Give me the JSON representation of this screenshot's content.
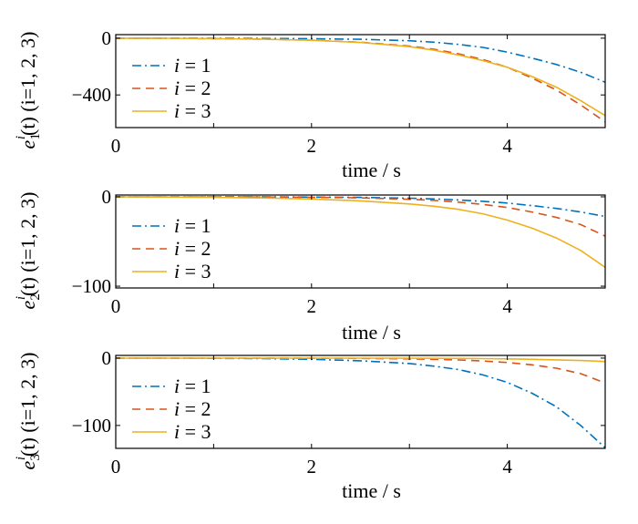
{
  "chart_data": [
    {
      "type": "line",
      "xlabel": "time / s",
      "ylabel": "e_1^i(t) (i=1, 2, 3)",
      "ylabel_parts": {
        "base": "e",
        "sub": "1",
        "sup": "i",
        "rest": "(t)  (i=1, 2, 3)"
      },
      "xlim": [
        0,
        5
      ],
      "ylim": [
        -630,
        25
      ],
      "x_ticks": [
        0,
        2,
        4
      ],
      "x_tick_labels": [
        "0",
        "2",
        "4"
      ],
      "y_ticks": [
        0,
        -400
      ],
      "y_tick_labels": [
        "0",
        "-400"
      ],
      "x": [
        0,
        0.5,
        1,
        1.5,
        2,
        2.5,
        3,
        3.25,
        3.5,
        3.75,
        4,
        4.25,
        4.5,
        4.75,
        5
      ],
      "series": [
        {
          "name": "i = 1",
          "color": "#0072BD",
          "dash": "dashdot",
          "values": [
            0,
            0,
            -1,
            -2,
            -4,
            -8,
            -18,
            -28,
            -44,
            -65,
            -98,
            -140,
            -185,
            -240,
            -310
          ]
        },
        {
          "name": "i = 2",
          "color": "#D95319",
          "dash": "dashed",
          "values": [
            0,
            -1,
            -3,
            -7,
            -14,
            -28,
            -55,
            -78,
            -110,
            -150,
            -205,
            -280,
            -365,
            -470,
            -590
          ]
        },
        {
          "name": "i = 3",
          "color": "#EDB120",
          "dash": "solid",
          "values": [
            0,
            -1,
            -3,
            -7,
            -15,
            -30,
            -60,
            -85,
            -118,
            -158,
            -205,
            -270,
            -345,
            -440,
            -545
          ]
        }
      ],
      "legend_position": "left"
    },
    {
      "type": "line",
      "xlabel": "time / s",
      "ylabel": "e_2^i(t) (i=1, 2, 3)",
      "ylabel_parts": {
        "base": "e",
        "sub": "2",
        "sup": "i",
        "rest": "(t)  (i=1, 2, 3)"
      },
      "xlim": [
        0,
        5
      ],
      "ylim": [
        -102,
        2
      ],
      "x_ticks": [
        0,
        2,
        4
      ],
      "x_tick_labels": [
        "0",
        "2",
        "4"
      ],
      "y_ticks": [
        0,
        -100
      ],
      "y_tick_labels": [
        "0",
        "-100"
      ],
      "x": [
        0,
        0.5,
        1,
        1.5,
        2,
        2.5,
        3,
        3.25,
        3.5,
        3.75,
        4,
        4.25,
        4.5,
        4.75,
        5
      ],
      "series": [
        {
          "name": "i = 1",
          "color": "#0072BD",
          "dash": "dashdot",
          "values": [
            0,
            0,
            0,
            0,
            -0.3,
            -0.7,
            -1.6,
            -2.4,
            -3.5,
            -5,
            -7,
            -9.8,
            -13,
            -17,
            -22
          ]
        },
        {
          "name": "i = 2",
          "color": "#D95319",
          "dash": "dashed",
          "values": [
            0,
            0,
            0,
            -0.2,
            -0.5,
            -1.2,
            -2.8,
            -4,
            -6,
            -8.5,
            -12,
            -17,
            -23,
            -31,
            -44
          ]
        },
        {
          "name": "i = 3",
          "color": "#EDB120",
          "dash": "solid",
          "values": [
            0,
            -0.2,
            -0.6,
            -1.3,
            -2.5,
            -4.5,
            -8,
            -10.5,
            -14,
            -19,
            -26,
            -35,
            -46,
            -60,
            -79
          ]
        }
      ],
      "legend_position": "left"
    },
    {
      "type": "line",
      "xlabel": "time / s",
      "ylabel": "e_3^i(t) (i=1, 2, 3)",
      "ylabel_parts": {
        "base": "e",
        "sub": "3",
        "sup": "i",
        "rest": "(t)  (i=1, 2, 3)"
      },
      "xlim": [
        0,
        5
      ],
      "ylim": [
        -134,
        4
      ],
      "x_ticks": [
        0,
        2,
        4
      ],
      "x_tick_labels": [
        "0",
        "2",
        "4"
      ],
      "y_ticks": [
        0,
        -100
      ],
      "y_tick_labels": [
        "0",
        "-100"
      ],
      "x": [
        0,
        0.5,
        1,
        1.5,
        2,
        2.5,
        3,
        3.25,
        3.5,
        3.75,
        4,
        4.25,
        4.5,
        4.75,
        5
      ],
      "series": [
        {
          "name": "i = 1",
          "color": "#0072BD",
          "dash": "dashdot",
          "values": [
            0,
            0,
            -0.3,
            -0.8,
            -1.8,
            -4,
            -8,
            -12,
            -17,
            -25,
            -36,
            -52,
            -72,
            -100,
            -133
          ]
        },
        {
          "name": "i = 2",
          "color": "#D95319",
          "dash": "dashed",
          "values": [
            0,
            0,
            0,
            0,
            -0.2,
            -0.5,
            -1.2,
            -1.8,
            -2.8,
            -4.2,
            -6.5,
            -10,
            -15,
            -23,
            -37
          ]
        },
        {
          "name": "i = 3",
          "color": "#EDB120",
          "dash": "solid",
          "values": [
            0,
            0,
            0,
            0,
            0,
            0,
            -0.2,
            -0.3,
            -0.5,
            -0.8,
            -1.2,
            -1.8,
            -2.6,
            -3.6,
            -5
          ]
        }
      ],
      "legend_position": "left"
    }
  ]
}
